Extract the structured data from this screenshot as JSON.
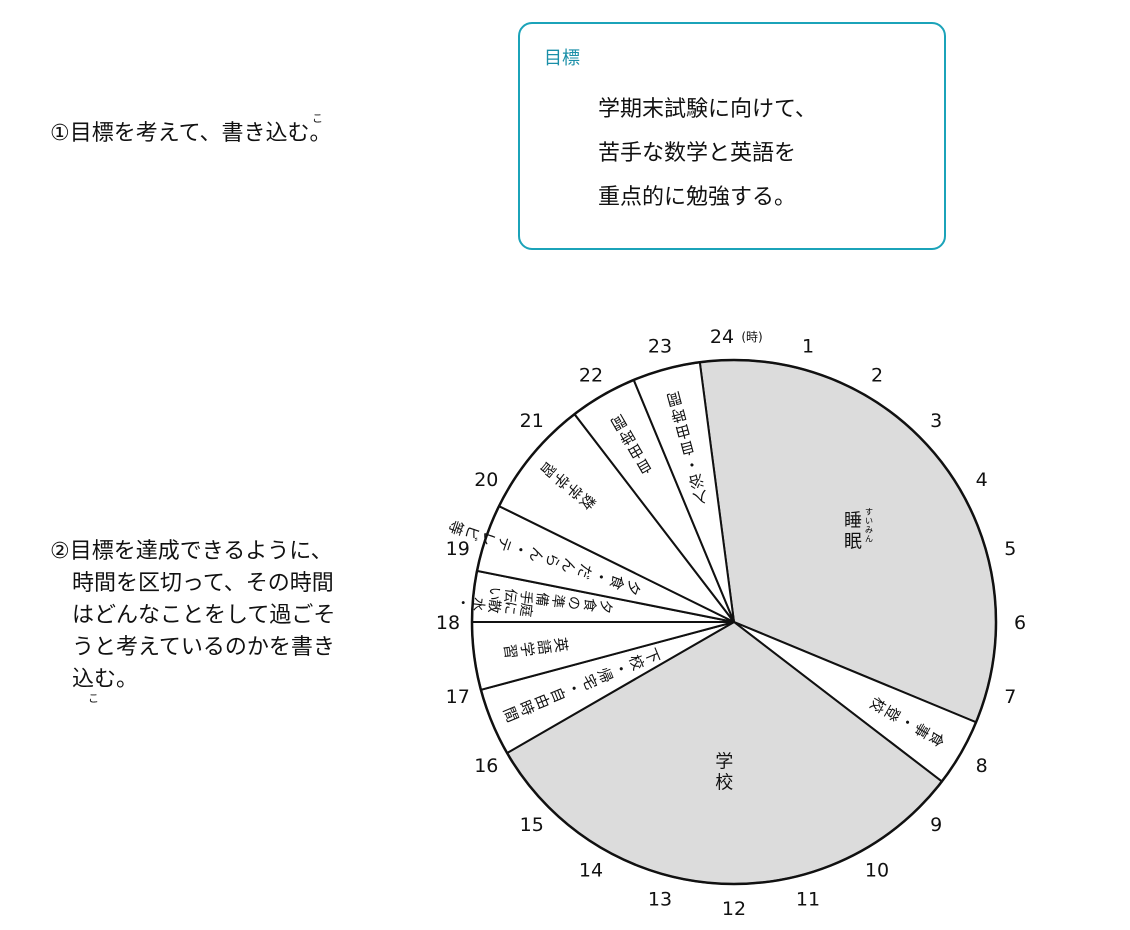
{
  "instructions": {
    "step1": "①目標を考えて、書き込む。",
    "step2": "②目標を達成できるように、\n　時間を区切って、その時間\n　はどんなことをして過ごそ\n　うと考えているのかを書き\n　込む。",
    "ruby_ko": "こ"
  },
  "goal": {
    "title": "目標",
    "text": "学期末試験に向けて、\n苦手な数学と英語を\n重点的に勉強する。"
  },
  "chart_data": {
    "type": "pie",
    "hour_label_24": "24",
    "hour_label_unit": "(時)",
    "hour_labels": [
      "1",
      "2",
      "3",
      "4",
      "5",
      "6",
      "7",
      "8",
      "9",
      "10",
      "11",
      "12",
      "13",
      "14",
      "15",
      "16",
      "17",
      "18",
      "19",
      "20",
      "21",
      "22",
      "23"
    ],
    "segments": [
      {
        "label": "睡眠",
        "ruby": "すいみん",
        "start": 23.5,
        "end": 7.5,
        "shaded": true
      },
      {
        "label": "食事・登校",
        "start": 7.5,
        "end": 8.5,
        "shaded": false
      },
      {
        "label": "学校",
        "start": 8.5,
        "end": 16,
        "shaded": true
      },
      {
        "label": "下校・帰宅・自由時間",
        "start": 16,
        "end": 17,
        "shaded": false
      },
      {
        "label": "英語学習",
        "start": 17,
        "end": 18,
        "shaded": false
      },
      {
        "label": "夕食の準備手伝い",
        "start": 18,
        "end": 18.75,
        "shaded": false
      },
      {
        "label": "庭に散水・",
        "start": 18,
        "end": 18.75,
        "shaded": false
      },
      {
        "label": "夕食・だんらん・テレビ等",
        "start": 18.75,
        "end": 19.75,
        "shaded": false
      },
      {
        "label": "数学学習",
        "start": 19.75,
        "end": 21.5,
        "shaded": false
      },
      {
        "label": "自由時間",
        "start": 21.5,
        "end": 22.5,
        "shaded": false
      },
      {
        "label": "入浴・自由時間",
        "start": 22.5,
        "end": 23.5,
        "shaded": false
      }
    ],
    "colors": {
      "shaded": "#dcdcdc",
      "unshaded": "#ffffff",
      "stroke": "#111111"
    }
  }
}
